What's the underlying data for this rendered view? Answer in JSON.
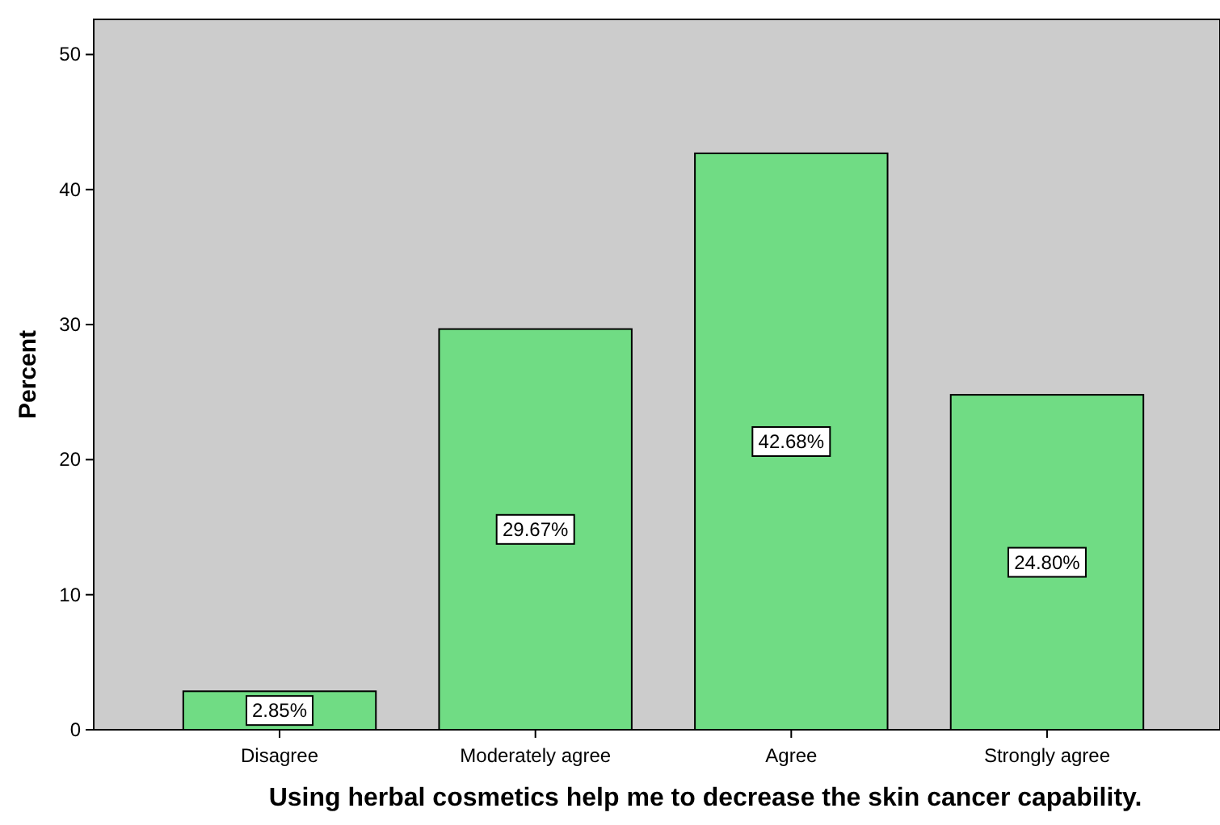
{
  "chart_data": {
    "type": "bar",
    "xlabel": "Using herbal cosmetics help me to decrease the skin cancer capability.",
    "ylabel": "Percent",
    "categories": [
      "Disagree",
      "Moderately agree",
      "Agree",
      "Strongly agree"
    ],
    "values": [
      2.85,
      29.67,
      42.68,
      24.8
    ],
    "value_labels": [
      "2.85%",
      "29.67%",
      "42.68%",
      "24.80%"
    ],
    "color": "#70dc84",
    "ylim": [
      0,
      52.6
    ],
    "yticks": [
      0,
      10,
      20,
      30,
      40,
      50
    ],
    "grid": false
  }
}
